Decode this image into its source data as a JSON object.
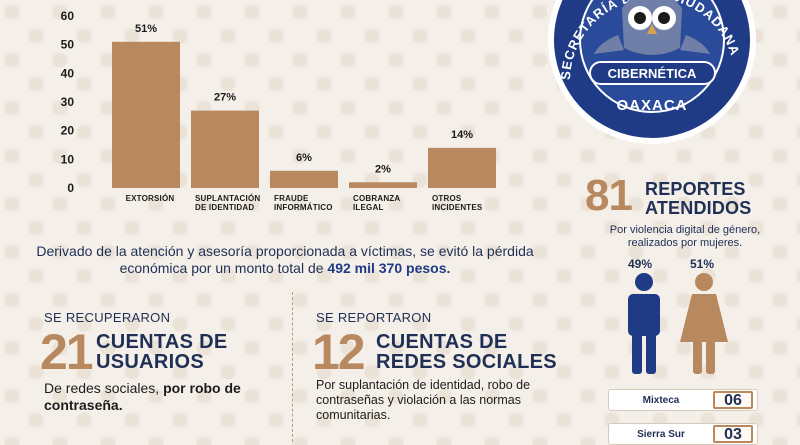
{
  "chart_data": {
    "type": "bar",
    "categories": [
      [
        "EXTORSIÓN"
      ],
      [
        "SUPLANTACIÓN",
        "DE IDENTIDAD"
      ],
      [
        "FRAUDE",
        "INFORMÁTICO"
      ],
      [
        "COBRANZA",
        "ILEGAL"
      ],
      [
        "OTROS",
        "INCIDENTES"
      ]
    ],
    "values": [
      51,
      27,
      6,
      2,
      14
    ],
    "data_labels": [
      "51%",
      "27%",
      "6%",
      "2%",
      "14%"
    ],
    "ylim": [
      0,
      60
    ],
    "yticks": [
      0,
      10,
      20,
      30,
      40,
      50,
      60
    ],
    "grid": false,
    "bar_color": "#b8895f"
  },
  "seal": {
    "line1": "SECRETARÍA DE",
    "line2": "CIUDADANA",
    "badge": "CIBERNÉTICA",
    "city": "OAXACA"
  },
  "statement": {
    "text": "Derivado de la atención y asesoría proporcionada a víctimas, se evitó la pérdida económica por un monto total de",
    "amount": "492 mil 370 pesos."
  },
  "recovered": {
    "pre": "SE RECUPERARON",
    "number": "21",
    "line1": "CUENTAS DE",
    "line2": "USUARIOS",
    "desc_plain": "De redes sociales,",
    "desc_bold": "por robo de contraseña."
  },
  "reported": {
    "pre": "SE REPORTARON",
    "number": "12",
    "line1": "CUENTAS DE",
    "line2": "REDES SOCIALES",
    "desc": "Por suplantación de identidad, robo de contraseñas y violación a las normas comunitarias."
  },
  "reports": {
    "number": "81",
    "line1": "REPORTES",
    "line2": "ATENDIDOS",
    "sub": "Por violencia digital de género, realizados por mujeres.",
    "male_pct": "49%",
    "female_pct": "51%",
    "male_color": "#1f3b86",
    "female_color": "#b8895f"
  },
  "regions": [
    {
      "name": "Mixteca",
      "count": "06"
    },
    {
      "name": "Sierra Sur",
      "count": "03"
    }
  ],
  "colors": {
    "navy": "#1f2f56",
    "gold": "#b8895f",
    "background": "#f4efe8"
  }
}
